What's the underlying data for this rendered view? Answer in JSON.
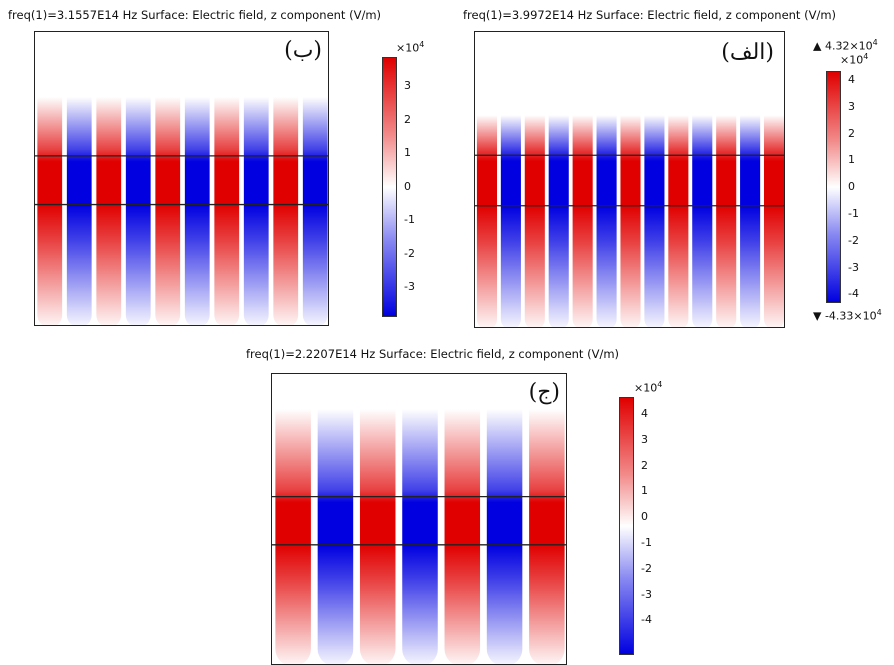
{
  "colors": {
    "positive": "#e00000",
    "negative": "#0000e0",
    "zero": "#ffffff"
  },
  "panels": [
    {
      "id": "b",
      "title": "freq(1)=3.1557E14 Hz  Surface: Electric field, z component (V/m)",
      "label": "(ب)",
      "stripes": 10,
      "colorbar": {
        "exponent_base": "×10",
        "exponent_power": "4",
        "ticks": [
          "3",
          "2",
          "1",
          "0",
          "-1",
          "-2",
          "-3"
        ]
      }
    },
    {
      "id": "alef",
      "title": "freq(1)=3.9972E14 Hz  Surface: Electric field, z component (V/m)",
      "label": "(الف)",
      "stripes": 13,
      "colorbar": {
        "max_marker": "▲ 4.32×10",
        "max_power": "4",
        "exponent_base": "×10",
        "exponent_power": "4",
        "ticks": [
          "4",
          "3",
          "2",
          "1",
          "0",
          "-1",
          "-2",
          "-3",
          "-4"
        ],
        "min_marker": "▼ -4.33×10",
        "min_power": "4"
      }
    },
    {
      "id": "jim",
      "title": "freq(1)=2.2207E14 Hz  Surface: Electric field, z component (V/m)",
      "label": "(ج)",
      "stripes": 7,
      "colorbar": {
        "exponent_base": "×10",
        "exponent_power": "4",
        "ticks": [
          "4",
          "3",
          "2",
          "1",
          "0",
          "-1",
          "-2",
          "-3",
          "-4"
        ]
      }
    }
  ]
}
